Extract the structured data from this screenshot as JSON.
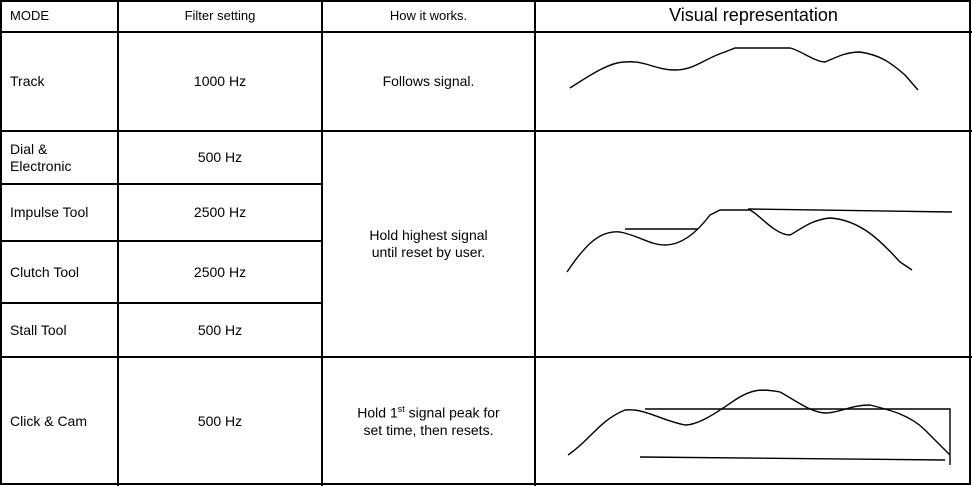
{
  "table": {
    "header": [
      "MODE",
      "Filter setting",
      "How it works.",
      "Visual representation"
    ],
    "rows": [
      {
        "mode": "Track",
        "filter": "1000 Hz",
        "how": "Follows signal."
      },
      {
        "mode": "Dial & Electronic",
        "filter": "500 Hz"
      },
      {
        "mode": "Impulse Tool",
        "filter": "2500 Hz"
      },
      {
        "mode": "Clutch Tool",
        "filter": "2500 Hz"
      },
      {
        "mode": "Stall Tool",
        "filter": "500 Hz"
      },
      {
        "mode": "Click & Cam",
        "filter": "500 Hz"
      }
    ],
    "merged_how": "Hold highest signal until reset by user.",
    "click_how": {
      "before": "Hold 1",
      "sup": "st",
      "after": " signal peak for set time, then resets."
    }
  }
}
